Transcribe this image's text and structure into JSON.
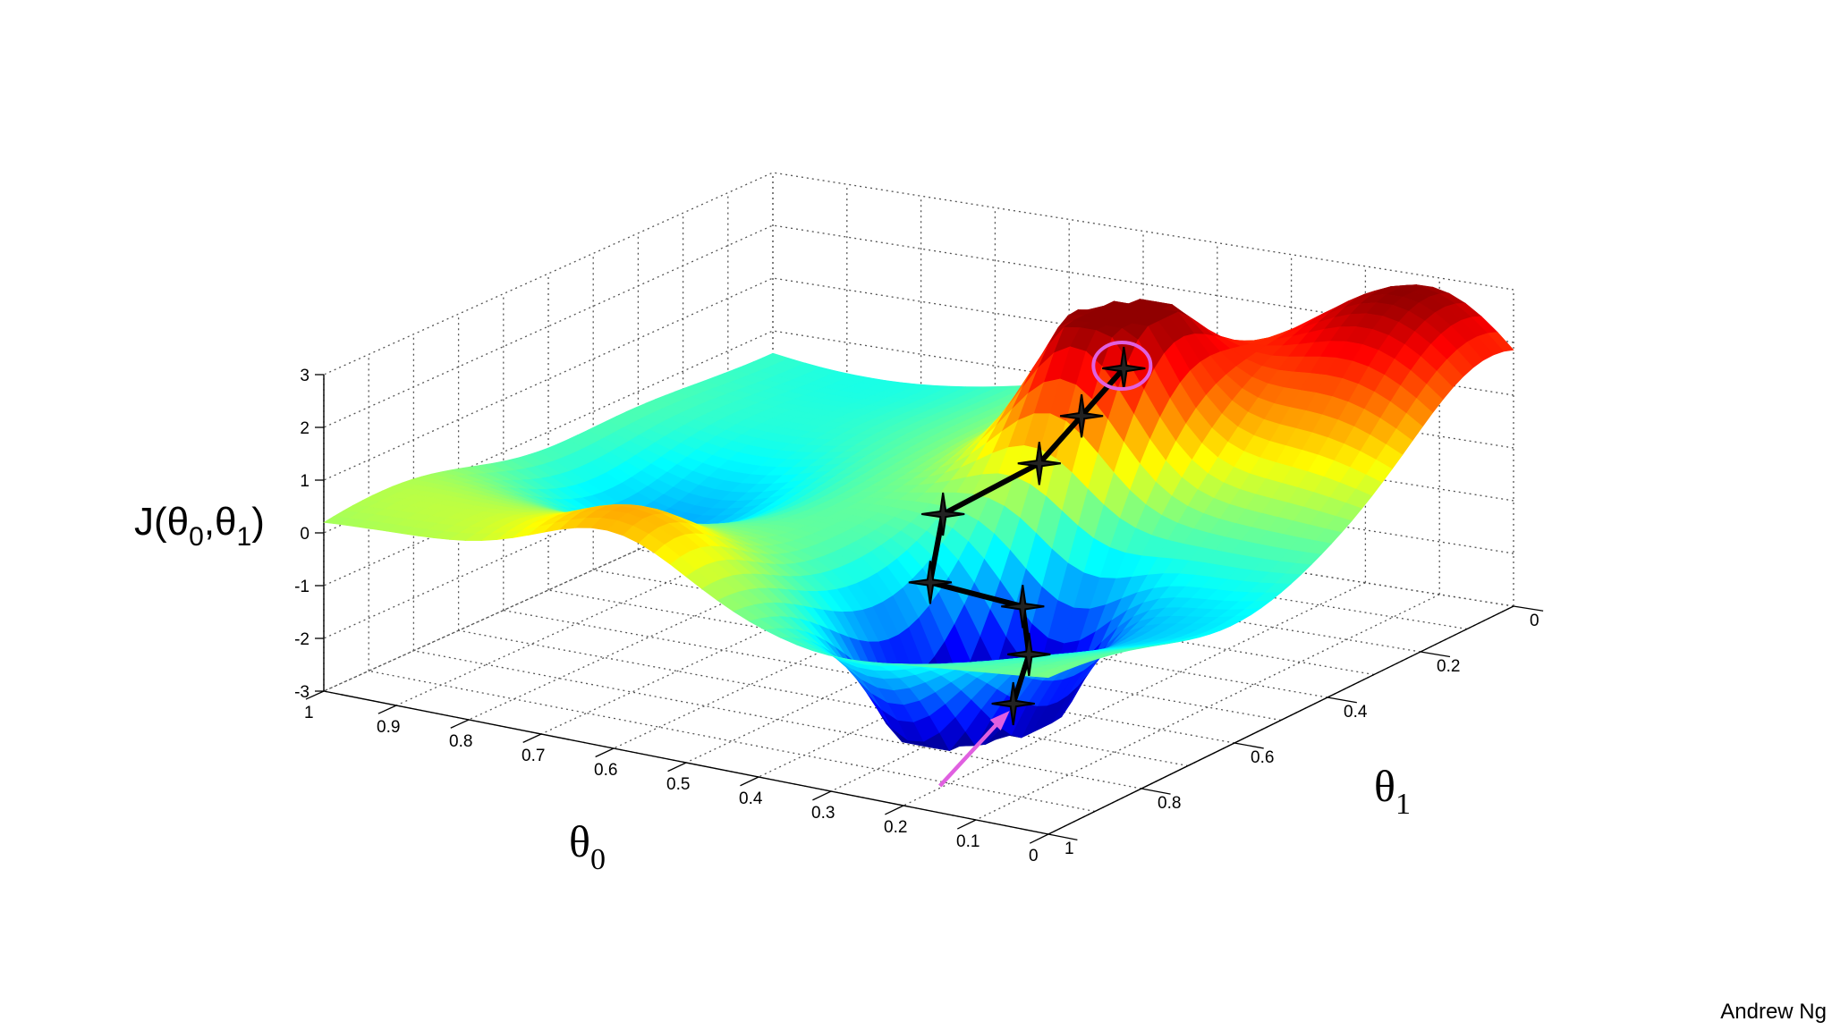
{
  "footer": {
    "author": "Andrew Ng"
  },
  "chart_data": {
    "type": "surface",
    "xlabel": "θ",
    "xlabel_sub": "0",
    "ylabel": "θ",
    "ylabel_sub": "1",
    "zlabel_parts": [
      "J(θ",
      "0",
      ",θ",
      "1",
      ")"
    ],
    "x_ticks": [
      "1",
      "0.9",
      "0.8",
      "0.7",
      "0.6",
      "0.5",
      "0.4",
      "0.3",
      "0.2",
      "0.1",
      "0"
    ],
    "y_ticks": [
      "0",
      "0.2",
      "0.4",
      "0.6",
      "0.8",
      "1"
    ],
    "z_ticks": [
      "3",
      "2",
      "1",
      "0",
      "-1",
      "-2",
      "-3"
    ],
    "xlim": [
      0,
      1
    ],
    "ylim": [
      0,
      1
    ],
    "zlim": [
      -3,
      3
    ],
    "colormap": "jet",
    "grid": true,
    "descent_path": [
      {
        "theta0": 0.34,
        "theta1": 0.3,
        "J": 2.0
      },
      {
        "theta0": 0.36,
        "theta1": 0.36,
        "J": 1.3
      },
      {
        "theta0": 0.38,
        "theta1": 0.42,
        "J": 0.6
      },
      {
        "theta0": 0.48,
        "theta1": 0.47,
        "J": -0.4
      },
      {
        "theta0": 0.46,
        "theta1": 0.53,
        "J": -1.4
      },
      {
        "theta0": 0.34,
        "theta1": 0.52,
        "J": -1.6
      },
      {
        "theta0": 0.3,
        "theta1": 0.57,
        "J": -2.2
      },
      {
        "theta0": 0.29,
        "theta1": 0.62,
        "J": -2.9
      }
    ],
    "start_marker": "circle",
    "end_marker": "arrow",
    "annotation_color": "#e060e0"
  }
}
